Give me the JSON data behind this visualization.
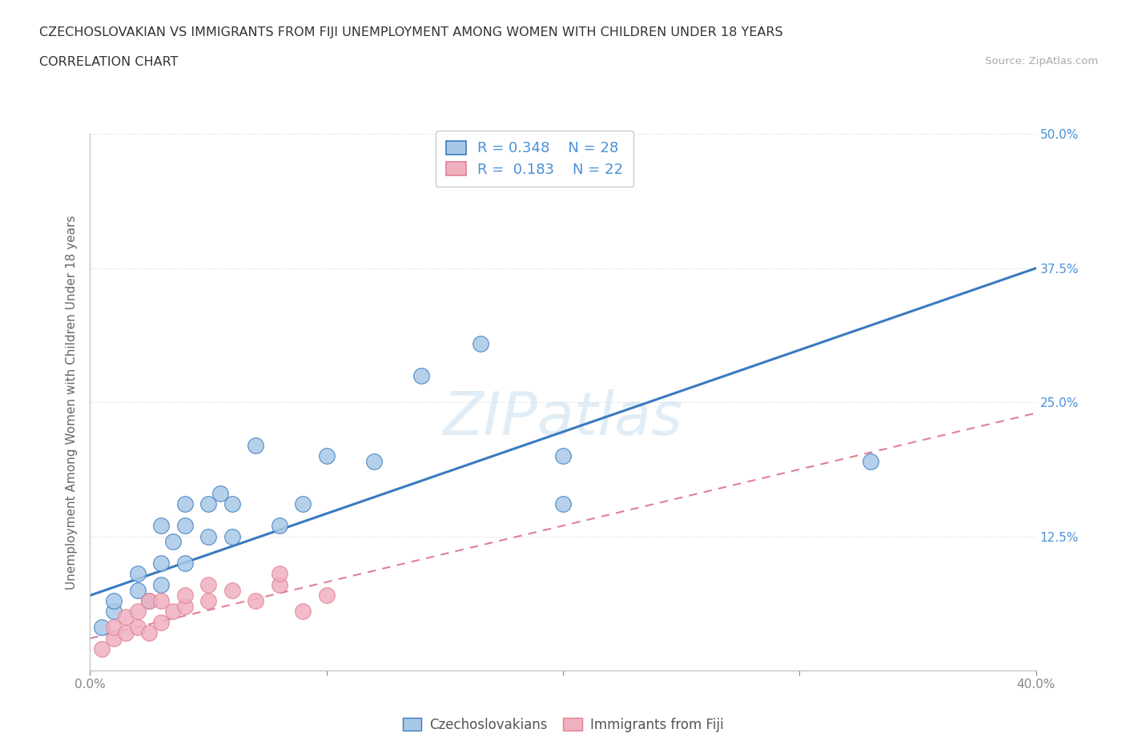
{
  "title": "CZECHOSLOVAKIAN VS IMMIGRANTS FROM FIJI UNEMPLOYMENT AMONG WOMEN WITH CHILDREN UNDER 18 YEARS",
  "subtitle": "CORRELATION CHART",
  "source": "Source: ZipAtlas.com",
  "ylabel": "Unemployment Among Women with Children Under 18 years",
  "watermark": "ZIPatlas",
  "legend_r1": "R = 0.348",
  "legend_n1": "N = 28",
  "legend_r2": "R =  0.183",
  "legend_n2": "N = 22",
  "xmin": 0.0,
  "xmax": 0.4,
  "ymin": 0.0,
  "ymax": 0.5,
  "xticks": [
    0.0,
    0.1,
    0.2,
    0.3,
    0.4
  ],
  "xticklabels": [
    "0.0%",
    "",
    "",
    "",
    "40.0%"
  ],
  "ytick_positions": [
    0.0,
    0.125,
    0.25,
    0.375,
    0.5
  ],
  "ytick_labels": [
    "",
    "12.5%",
    "25.0%",
    "37.5%",
    "50.0%"
  ],
  "color_czech": "#a8c8e8",
  "color_fiji": "#f0b0c0",
  "line_czech": "#3a7abf",
  "line_fiji": "#e08090",
  "czech_scatter_x": [
    0.005,
    0.01,
    0.01,
    0.02,
    0.02,
    0.025,
    0.03,
    0.03,
    0.03,
    0.035,
    0.04,
    0.04,
    0.04,
    0.05,
    0.05,
    0.055,
    0.06,
    0.06,
    0.07,
    0.08,
    0.09,
    0.1,
    0.12,
    0.14,
    0.165,
    0.2,
    0.2,
    0.33
  ],
  "czech_scatter_y": [
    0.04,
    0.055,
    0.065,
    0.075,
    0.09,
    0.065,
    0.08,
    0.1,
    0.135,
    0.12,
    0.1,
    0.135,
    0.155,
    0.125,
    0.155,
    0.165,
    0.125,
    0.155,
    0.21,
    0.135,
    0.155,
    0.2,
    0.195,
    0.275,
    0.305,
    0.155,
    0.2,
    0.195
  ],
  "fiji_scatter_x": [
    0.005,
    0.01,
    0.01,
    0.015,
    0.015,
    0.02,
    0.02,
    0.025,
    0.025,
    0.03,
    0.03,
    0.035,
    0.04,
    0.04,
    0.05,
    0.05,
    0.06,
    0.07,
    0.08,
    0.08,
    0.09,
    0.1
  ],
  "fiji_scatter_y": [
    0.02,
    0.03,
    0.04,
    0.035,
    0.05,
    0.04,
    0.055,
    0.035,
    0.065,
    0.045,
    0.065,
    0.055,
    0.06,
    0.07,
    0.065,
    0.08,
    0.075,
    0.065,
    0.08,
    0.09,
    0.055,
    0.07
  ],
  "czech_line_x_start": 0.0,
  "czech_line_x_end": 0.4,
  "czech_line_y_start": 0.07,
  "czech_line_y_end": 0.375,
  "fiji_line_x_start": 0.0,
  "fiji_line_x_end": 0.4,
  "fiji_line_y_start": 0.03,
  "fiji_line_y_end": 0.24
}
